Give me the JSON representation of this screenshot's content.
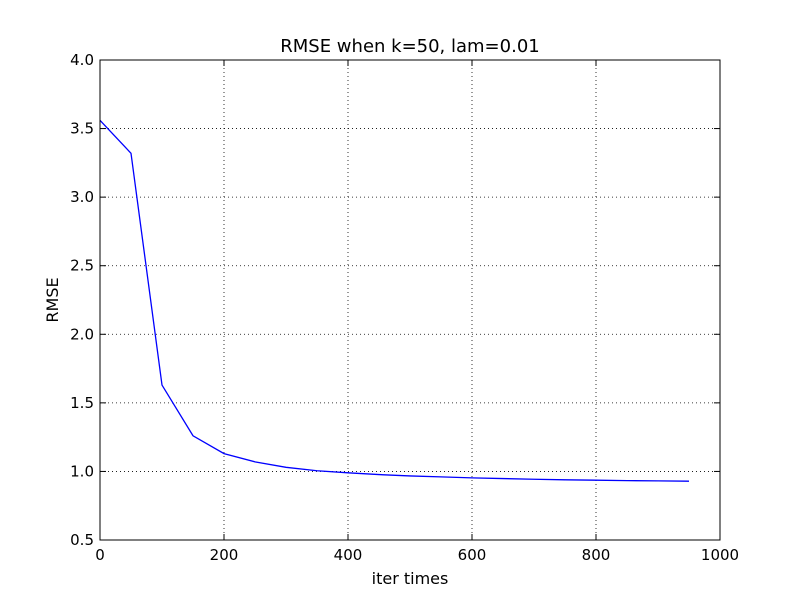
{
  "chart_data": {
    "type": "line",
    "title": "RMSE when k=50, lam=0.01",
    "xlabel": "iter times",
    "ylabel": "RMSE",
    "xlim": [
      0,
      1000
    ],
    "ylim": [
      0.5,
      4.0
    ],
    "xticks": [
      0,
      200,
      400,
      600,
      800,
      1000
    ],
    "yticks": [
      0.5,
      1.0,
      1.5,
      2.0,
      2.5,
      3.0,
      3.5,
      4.0
    ],
    "xtick_labels": [
      "0",
      "200",
      "400",
      "600",
      "800",
      "1000"
    ],
    "ytick_labels": [
      "0.5",
      "1.0",
      "1.5",
      "2.0",
      "2.5",
      "3.0",
      "3.5",
      "4.0"
    ],
    "grid": true,
    "series": [
      {
        "color": "#0000ff",
        "x": [
          0,
          50,
          100,
          150,
          200,
          250,
          300,
          350,
          400,
          450,
          500,
          550,
          600,
          650,
          700,
          750,
          800,
          850,
          900,
          950
        ],
        "y": [
          3.56,
          3.32,
          1.63,
          1.26,
          1.13,
          1.07,
          1.03,
          1.005,
          0.99,
          0.977,
          0.967,
          0.96,
          0.953,
          0.948,
          0.943,
          0.939,
          0.936,
          0.933,
          0.931,
          0.929
        ]
      }
    ]
  }
}
